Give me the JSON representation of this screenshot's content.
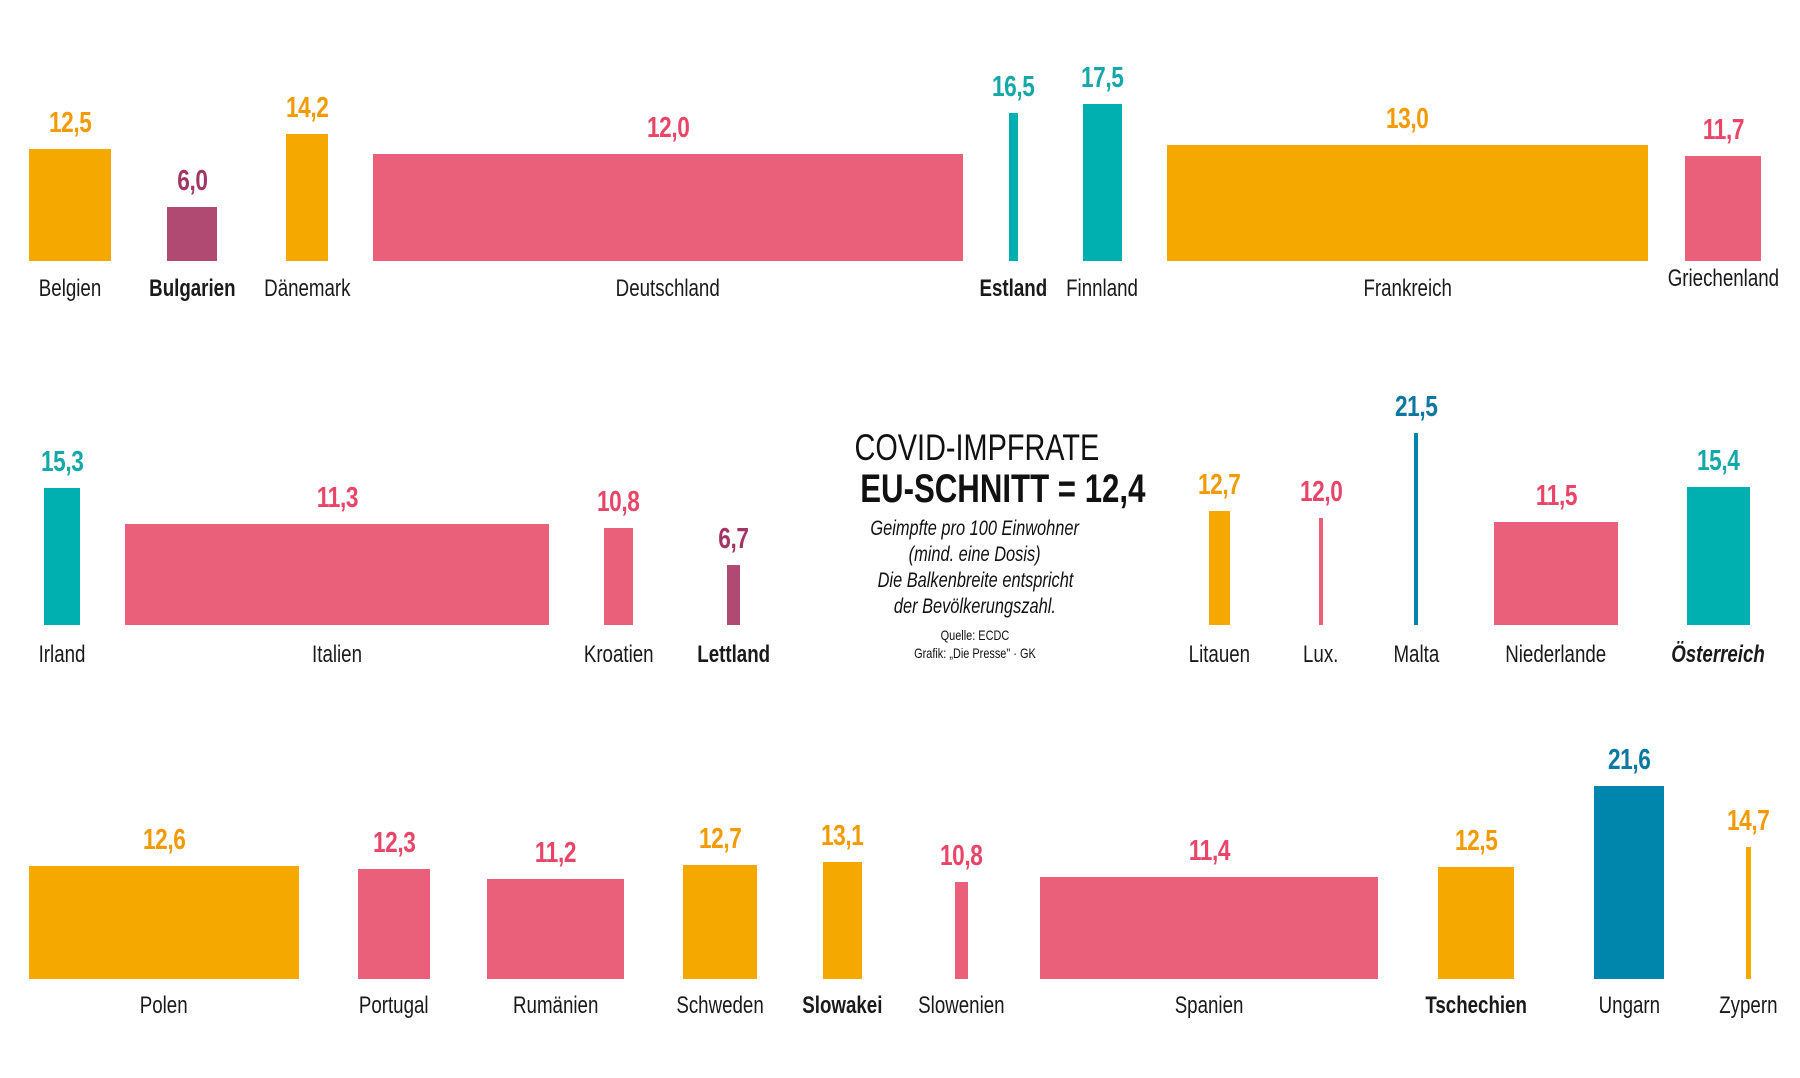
{
  "title": "COVID-IMPFRATE",
  "headline": "EU-SCHNITT = 12,4",
  "subtitle_lines": [
    "Geimpfte pro 100 Einwohner",
    "(mind. eine Dosis)",
    "Die Balkenbreite entspricht",
    "der Bevölkerungszahl."
  ],
  "source": "Quelle: ECDC",
  "credit": "Grafik: „Die Presse\" · GK",
  "colors": {
    "below_10": "#B04A73",
    "below_avg": "#EA607A",
    "above_avg": "#F5A800",
    "above_15": "#00B0B0",
    "above_20": "#0086AD",
    "label": "#1a1a1a"
  },
  "value_colors": {
    "below_10": "#A33565",
    "below_avg": "#E84568",
    "above_avg": "#F29A00",
    "above_15": "#16A8A8",
    "above_20": "#0A78A0"
  },
  "chart_data": {
    "type": "bar",
    "title": "COVID-IMPFRATE",
    "subtitle": "Geimpfte pro 100 Einwohner (mind. eine Dosis); Die Balkenbreite entspricht der Bevölkerungszahl.",
    "eu_average": 12.4,
    "unit": "Geimpfte pro 100 Einwohner",
    "xlabel": "",
    "ylabel": "",
    "grid": false,
    "categories": [
      "Belgien",
      "Bulgarien",
      "Dänemark",
      "Deutschland",
      "Estland",
      "Finnland",
      "Frankreich",
      "Griechenland",
      "Irland",
      "Italien",
      "Kroatien",
      "Lettland",
      "Litauen",
      "Lux.",
      "Malta",
      "Niederlande",
      "Österreich",
      "Polen",
      "Portugal",
      "Rumänien",
      "Schweden",
      "Slowakei",
      "Slowenien",
      "Spanien",
      "Tschechien",
      "Ungarn",
      "Zypern"
    ],
    "values": [
      12.5,
      6.0,
      14.2,
      12.0,
      16.5,
      17.5,
      13.0,
      11.7,
      15.3,
      11.3,
      10.8,
      6.7,
      12.7,
      12.0,
      21.5,
      11.5,
      15.4,
      12.6,
      12.3,
      11.2,
      12.7,
      13.1,
      10.8,
      11.4,
      12.5,
      21.6,
      14.7
    ],
    "value_labels": [
      "12,5",
      "6,0",
      "14,2",
      "12,0",
      "16,5",
      "17,5",
      "13,0",
      "11,7",
      "15,3",
      "11,3",
      "10,8",
      "6,7",
      "12,7",
      "12,0",
      "21,5",
      "11,5",
      "15,4",
      "12,6",
      "12,3",
      "11,2",
      "12,7",
      "13,1",
      "10,8",
      "11,4",
      "12,5",
      "21,6",
      "14,7"
    ],
    "color_class": [
      "above_avg",
      "below_10",
      "above_avg",
      "below_avg",
      "above_15",
      "above_15",
      "above_avg",
      "below_avg",
      "above_15",
      "below_avg",
      "below_avg",
      "below_10",
      "above_avg",
      "below_avg",
      "above_20",
      "below_avg",
      "above_15",
      "above_avg",
      "below_avg",
      "below_avg",
      "above_avg",
      "above_avg",
      "below_avg",
      "below_avg",
      "above_avg",
      "above_20",
      "above_avg"
    ],
    "label_style": [
      "normal",
      "bold",
      "normal",
      "normal",
      "bold",
      "normal",
      "normal",
      "normal",
      "normal",
      "normal",
      "normal",
      "bold",
      "normal",
      "normal",
      "normal",
      "normal",
      "bold-italic",
      "normal",
      "normal",
      "normal",
      "normal",
      "bold",
      "normal",
      "normal",
      "bold",
      "normal",
      "normal"
    ],
    "rows": [
      [
        "Belgien",
        "Bulgarien",
        "Dänemark",
        "Deutschland",
        "Estland",
        "Finnland",
        "Frankreich",
        "Griechenland"
      ],
      [
        "Irland",
        "Italien",
        "Kroatien",
        "Lettland",
        "Litauen",
        "Lux.",
        "Malta",
        "Niederlande",
        "Österreich"
      ],
      [
        "Polen",
        "Portugal",
        "Rumänien",
        "Schweden",
        "Slowakei",
        "Slowenien",
        "Spanien",
        "Tschechien",
        "Ungarn",
        "Zypern"
      ]
    ]
  }
}
